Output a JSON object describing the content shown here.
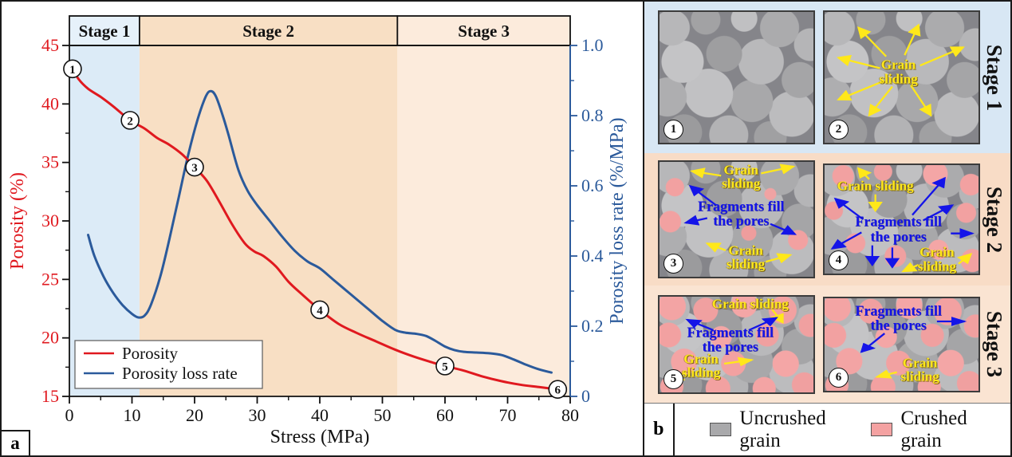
{
  "figure": {
    "panel_a_label": "a",
    "panel_b_label": "b"
  },
  "colors": {
    "porosity_red": "#e0191f",
    "rate_blue": "#2b5a9b",
    "stage1_band": "#dcebf7",
    "stage2_band": "#f8dfc4",
    "stage3_band": "#fcebdc",
    "annotation_yellow": "#ffe81a",
    "annotation_blue": "#1414e8",
    "uncrushed_gray": "#a9a9ab",
    "crushed_pink": "#f4a2a2"
  },
  "chart_data": {
    "type": "line",
    "title": "",
    "xlabel": "Stress (MPa)",
    "ylabel_left": "Porosity (%)",
    "ylabel_right": "Porosity loss rate (%/MPa)",
    "xlim": [
      0,
      80
    ],
    "ylim_left": [
      15,
      45
    ],
    "ylim_right": [
      0,
      1.0
    ],
    "x_major_ticks": [
      0,
      10,
      20,
      30,
      40,
      50,
      60,
      70,
      80
    ],
    "x_minor_step": 5,
    "y_left_major_ticks": [
      15,
      20,
      25,
      30,
      35,
      40,
      45
    ],
    "y_left_minor_step": 2.5,
    "y_right_major_ticks": [
      "0",
      "0.2",
      "0.4",
      "0.6",
      "0.8",
      "1.0"
    ],
    "y_right_minor_step": 0.1,
    "grid": false,
    "legend_position": "lower left",
    "legend_items": [
      {
        "label": "Porosity",
        "color": "#e0191f"
      },
      {
        "label": "Porosity loss rate",
        "color": "#2b5a9b"
      }
    ],
    "stages": [
      {
        "label": "Stage 1",
        "x_start": 0,
        "x_end": 11.2,
        "band_color": "#dcebf7",
        "header_color": "#e6f1fa"
      },
      {
        "label": "Stage 2",
        "x_start": 11.2,
        "x_end": 52.4,
        "band_color": "#f8dfc4",
        "header_color": "#f8dfc4"
      },
      {
        "label": "Stage 3",
        "x_start": 52.4,
        "x_end": 80,
        "band_color": "#fcebdc",
        "header_color": "#fcebdc"
      }
    ],
    "series": [
      {
        "name": "Porosity",
        "axis": "left",
        "color": "#e0191f",
        "points": [
          [
            0.5,
            43.0
          ],
          [
            1.5,
            42.1
          ],
          [
            3,
            41.3
          ],
          [
            5,
            40.6
          ],
          [
            7,
            39.8
          ],
          [
            9.7,
            38.6
          ],
          [
            12,
            37.9
          ],
          [
            14,
            37.1
          ],
          [
            16,
            36.5
          ],
          [
            18,
            35.7
          ],
          [
            20,
            34.6
          ],
          [
            22,
            33.4
          ],
          [
            24,
            31.6
          ],
          [
            26,
            29.7
          ],
          [
            28,
            28.1
          ],
          [
            29.5,
            27.4
          ],
          [
            31,
            27.0
          ],
          [
            33,
            26.1
          ],
          [
            35,
            24.8
          ],
          [
            37,
            23.8
          ],
          [
            40,
            22.4
          ],
          [
            43,
            21.2
          ],
          [
            46,
            20.4
          ],
          [
            49,
            19.7
          ],
          [
            52,
            19.0
          ],
          [
            55,
            18.4
          ],
          [
            58,
            17.9
          ],
          [
            60,
            17.6
          ],
          [
            63,
            17.2
          ],
          [
            66,
            16.7
          ],
          [
            69,
            16.3
          ],
          [
            72,
            16.0
          ],
          [
            75,
            15.8
          ],
          [
            78,
            15.6
          ]
        ]
      },
      {
        "name": "Porosity loss rate",
        "axis": "right",
        "color": "#2b5a9b",
        "points": [
          [
            3,
            0.46
          ],
          [
            4,
            0.4
          ],
          [
            5.5,
            0.34
          ],
          [
            7,
            0.295
          ],
          [
            8.5,
            0.26
          ],
          [
            10,
            0.235
          ],
          [
            11,
            0.225
          ],
          [
            12,
            0.23
          ],
          [
            13,
            0.26
          ],
          [
            14.5,
            0.34
          ],
          [
            16,
            0.45
          ],
          [
            17.5,
            0.57
          ],
          [
            19,
            0.69
          ],
          [
            20.5,
            0.79
          ],
          [
            21.8,
            0.855
          ],
          [
            22.6,
            0.87
          ],
          [
            23.4,
            0.855
          ],
          [
            24.5,
            0.8
          ],
          [
            25.5,
            0.74
          ],
          [
            27,
            0.645
          ],
          [
            28.5,
            0.585
          ],
          [
            30,
            0.545
          ],
          [
            32,
            0.5
          ],
          [
            34,
            0.455
          ],
          [
            36,
            0.415
          ],
          [
            38,
            0.385
          ],
          [
            40,
            0.365
          ],
          [
            42,
            0.335
          ],
          [
            44,
            0.305
          ],
          [
            46,
            0.275
          ],
          [
            48,
            0.245
          ],
          [
            50,
            0.215
          ],
          [
            52,
            0.19
          ],
          [
            53.5,
            0.182
          ],
          [
            55.5,
            0.178
          ],
          [
            57,
            0.172
          ],
          [
            58.5,
            0.158
          ],
          [
            60,
            0.142
          ],
          [
            61.5,
            0.132
          ],
          [
            63,
            0.127
          ],
          [
            65,
            0.125
          ],
          [
            67,
            0.123
          ],
          [
            69,
            0.118
          ],
          [
            71,
            0.105
          ],
          [
            73,
            0.09
          ],
          [
            75,
            0.077
          ],
          [
            77,
            0.068
          ]
        ]
      }
    ],
    "point_markers": [
      {
        "label": "1",
        "x": 0.5,
        "y": 43.0
      },
      {
        "label": "2",
        "x": 9.7,
        "y": 38.6
      },
      {
        "label": "3",
        "x": 20,
        "y": 34.6
      },
      {
        "label": "4",
        "x": 40,
        "y": 22.4
      },
      {
        "label": "5",
        "x": 60,
        "y": 17.6
      },
      {
        "label": "6",
        "x": 78,
        "y": 15.6
      }
    ]
  },
  "panel_b": {
    "rows": [
      {
        "stage_label": "Stage 1",
        "bg": "#d8e7f4",
        "images": [
          {
            "number": "1",
            "annotations": {}
          },
          {
            "number": "2",
            "annotations": {
              "a0": "Grain sliding"
            }
          }
        ]
      },
      {
        "stage_label": "Stage 2",
        "bg": "#f8dcc6",
        "images": [
          {
            "number": "3",
            "annotations": {
              "a0": "Grain sliding",
              "a1": "Fragments fill the pores",
              "a2": "Grain sliding"
            }
          },
          {
            "number": "4",
            "annotations": {
              "a0": "Grain sliding",
              "a1": "Fragments fill the pores",
              "a2": "Grain sliding"
            }
          }
        ]
      },
      {
        "stage_label": "Stage 3",
        "bg": "#fae4d2",
        "images": [
          {
            "number": "5",
            "annotations": {
              "a0": "Grain sliding",
              "a1": "Fragments fill the pores",
              "a2": "Grain sliding"
            }
          },
          {
            "number": "6",
            "annotations": {
              "a0": "Fragments fill the pores",
              "a1": "Grain sliding"
            }
          }
        ]
      }
    ],
    "legend": [
      {
        "label": "Uncrushed grain",
        "color": "#a9a9ab"
      },
      {
        "label": "Crushed grain",
        "color": "#f4a2a2"
      }
    ]
  }
}
